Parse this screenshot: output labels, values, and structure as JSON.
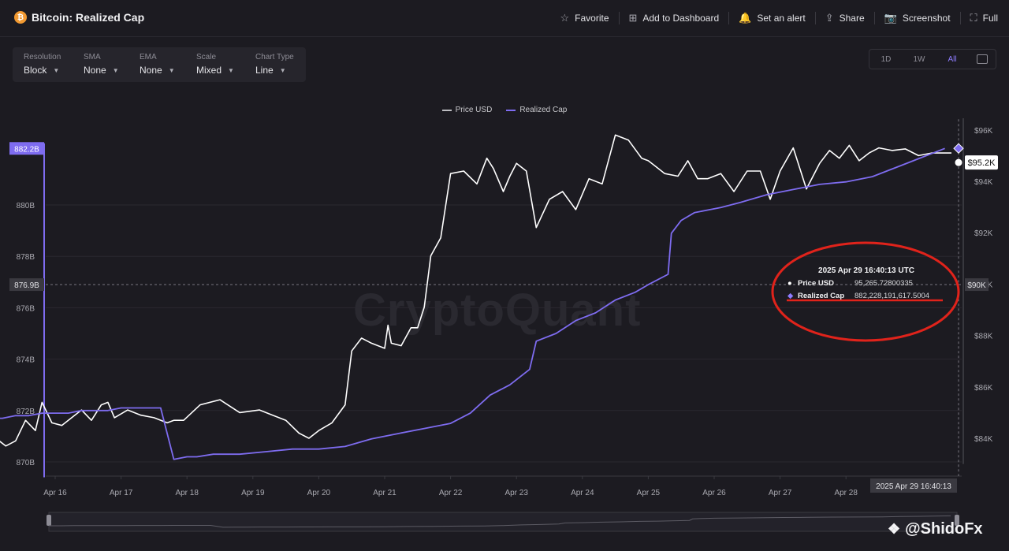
{
  "header": {
    "title": "Bitcoin: Realized Cap",
    "actions": [
      {
        "label": "Favorite",
        "icon": "star-icon",
        "glyph": "☆"
      },
      {
        "label": "Add to Dashboard",
        "icon": "dashboard-icon",
        "glyph": "⊞"
      },
      {
        "label": "Set an alert",
        "icon": "bell-icon",
        "glyph": "🔔"
      },
      {
        "label": "Share",
        "icon": "share-icon",
        "glyph": "⇪"
      },
      {
        "label": "Screenshot",
        "icon": "camera-icon",
        "glyph": "📷"
      },
      {
        "label": "Full",
        "icon": "fullscreen-icon",
        "glyph": "⛶"
      }
    ]
  },
  "controls": [
    {
      "label": "Resolution",
      "value": "Block"
    },
    {
      "label": "SMA",
      "value": "None"
    },
    {
      "label": "EMA",
      "value": "None"
    },
    {
      "label": "Scale",
      "value": "Mixed"
    },
    {
      "label": "Chart Type",
      "value": "Line"
    }
  ],
  "ranges": [
    "1D",
    "1W",
    "All"
  ],
  "range_selected": "All",
  "watermark": "CryptoQuant",
  "handle": "@ShidoFx",
  "colors": {
    "accent": "#7e6cf0",
    "price": "#ffffff",
    "annotation": "#e0231b"
  },
  "chart_data": {
    "type": "line",
    "x_tick_labels": [
      "Apr 16",
      "Apr 17",
      "Apr 18",
      "Apr 19",
      "Apr 20",
      "Apr 21",
      "Apr 22",
      "Apr 23",
      "Apr 24",
      "Apr 25",
      "Apr 26",
      "Apr 27",
      "Apr 28"
    ],
    "x_range": [
      "Apr 15",
      "Apr 29"
    ],
    "legend": [
      "Price USD",
      "Realized Cap"
    ],
    "legend_position": "top-center",
    "grid": "horizontal",
    "left_axis": {
      "name": "Realized Cap",
      "ticks": [
        "870B",
        "872B",
        "874B",
        "876B",
        "878B",
        "880B"
      ],
      "ylim": [
        870,
        882.6
      ],
      "unit": "B"
    },
    "right_axis": {
      "name": "Price USD",
      "ticks": [
        "$84K",
        "$86K",
        "$88K",
        "$90K",
        "$92K",
        "$94K",
        "$96K"
      ],
      "ylim": [
        83.4,
        96.4
      ],
      "unit": "K"
    },
    "crosshair": {
      "left_label": "876.9B",
      "right_label": "$90K",
      "time_label": "2025 Apr 29 16:40:13"
    },
    "current_labels": {
      "left": "882.2B",
      "right": "$95.2K"
    },
    "series": [
      {
        "name": "Price USD",
        "axis": "right",
        "color": "#ffffff",
        "x": [
          15.0,
          15.1,
          15.25,
          15.4,
          15.55,
          15.7,
          15.8,
          15.95,
          16.1,
          16.25,
          16.4,
          16.55,
          16.7,
          16.8,
          16.9,
          17.1,
          17.3,
          17.5,
          17.7,
          17.8,
          17.95,
          18.2,
          18.5,
          18.8,
          19.1,
          19.3,
          19.5,
          19.7,
          19.85,
          20.0,
          20.2,
          20.4,
          20.5,
          20.65,
          20.8,
          21.0,
          21.05,
          21.1,
          21.25,
          21.4,
          21.5,
          21.6,
          21.7,
          21.85,
          22.0,
          22.2,
          22.4,
          22.55,
          22.65,
          22.8,
          22.9,
          23.0,
          23.15,
          23.3,
          23.5,
          23.7,
          23.9,
          24.1,
          24.3,
          24.5,
          24.7,
          24.9,
          25.0,
          25.1,
          25.25,
          25.45,
          25.6,
          25.75,
          25.9,
          26.1,
          26.3,
          26.5,
          26.7,
          26.85,
          27.0,
          27.2,
          27.4,
          27.6,
          27.75,
          27.9,
          28.05,
          28.2,
          28.35,
          28.5,
          28.7,
          28.9,
          29.1,
          29.3,
          29.6
        ],
        "y": [
          84.9,
          84.0,
          83.7,
          83.9,
          84.7,
          84.3,
          85.4,
          84.6,
          84.5,
          84.8,
          85.1,
          84.7,
          85.3,
          85.4,
          84.8,
          85.1,
          84.9,
          84.8,
          84.6,
          84.7,
          84.7,
          85.3,
          85.5,
          85.0,
          85.1,
          84.9,
          84.7,
          84.2,
          84.0,
          84.3,
          84.6,
          85.3,
          87.4,
          87.9,
          87.7,
          87.5,
          88.4,
          87.7,
          87.6,
          88.3,
          88.3,
          89.1,
          91.1,
          91.8,
          94.3,
          94.4,
          93.9,
          94.9,
          94.5,
          93.6,
          94.2,
          94.7,
          94.4,
          92.2,
          93.3,
          93.6,
          92.9,
          94.1,
          93.9,
          95.8,
          95.6,
          94.9,
          94.8,
          94.6,
          94.3,
          94.2,
          94.8,
          94.1,
          94.1,
          94.3,
          93.6,
          94.4,
          94.4,
          93.3,
          94.4,
          95.3,
          93.7,
          94.7,
          95.2,
          94.9,
          95.4,
          94.8,
          95.1,
          95.3,
          95.2,
          95.26,
          95.0,
          95.1,
          95.1
        ]
      },
      {
        "name": "Realized Cap",
        "axis": "left",
        "color": "#7e6cf0",
        "x": [
          15.0,
          15.2,
          15.4,
          15.6,
          15.8,
          16.0,
          16.2,
          16.4,
          16.6,
          16.8,
          17.0,
          17.2,
          17.4,
          17.6,
          17.8,
          18.0,
          18.15,
          18.4,
          18.8,
          19.2,
          19.6,
          20.0,
          20.4,
          20.8,
          21.2,
          21.6,
          22.0,
          22.3,
          22.6,
          22.9,
          23.2,
          23.3,
          23.6,
          23.9,
          24.2,
          24.5,
          24.8,
          25.0,
          25.3,
          25.35,
          25.5,
          25.7,
          25.9,
          26.1,
          26.4,
          26.8,
          27.2,
          27.6,
          28.0,
          28.4,
          28.7,
          29.0,
          29.3,
          29.5
        ],
        "y": [
          871.7,
          871.7,
          871.8,
          871.8,
          871.9,
          871.9,
          871.9,
          872.0,
          872.0,
          872.0,
          872.1,
          872.1,
          872.1,
          872.1,
          870.1,
          870.2,
          870.2,
          870.3,
          870.3,
          870.4,
          870.5,
          870.5,
          870.6,
          870.9,
          871.1,
          871.3,
          871.5,
          871.9,
          872.6,
          873.0,
          873.6,
          874.7,
          875.0,
          875.5,
          875.8,
          876.3,
          876.6,
          876.9,
          877.3,
          878.9,
          879.4,
          879.7,
          879.8,
          879.9,
          880.1,
          880.4,
          880.6,
          880.8,
          880.9,
          881.1,
          881.4,
          881.7,
          882.0,
          882.2
        ]
      }
    ],
    "tooltip": {
      "title": "2025 Apr 29 16:40:13 UTC",
      "rows": [
        {
          "name": "Price USD",
          "value": "95,265.72800335"
        },
        {
          "name": "Realized Cap",
          "value": "882,228,191,617.5004"
        }
      ]
    }
  }
}
